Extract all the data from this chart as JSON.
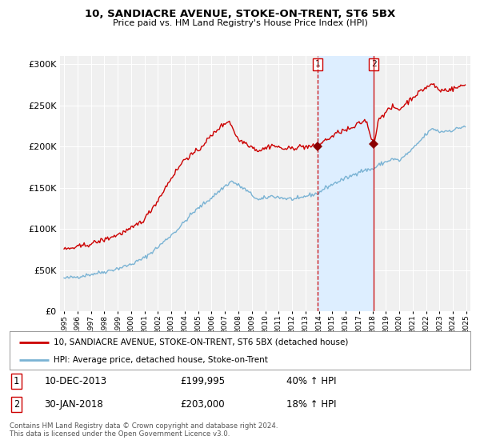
{
  "title": "10, SANDIACRE AVENUE, STOKE-ON-TRENT, ST6 5BX",
  "subtitle": "Price paid vs. HM Land Registry's House Price Index (HPI)",
  "legend_line1": "10, SANDIACRE AVENUE, STOKE-ON-TRENT, ST6 5BX (detached house)",
  "legend_line2": "HPI: Average price, detached house, Stoke-on-Trent",
  "annotation1_label": "1",
  "annotation1_date": "10-DEC-2013",
  "annotation1_price": "£199,995",
  "annotation1_hpi": "40% ↑ HPI",
  "annotation2_label": "2",
  "annotation2_date": "30-JAN-2018",
  "annotation2_price": "£203,000",
  "annotation2_hpi": "18% ↑ HPI",
  "footer": "Contains HM Land Registry data © Crown copyright and database right 2024.\nThis data is licensed under the Open Government Licence v3.0.",
  "hpi_color": "#7ab3d4",
  "price_color": "#cc0000",
  "marker_color": "#8b0000",
  "vline1_color": "#cc0000",
  "vline2_color": "#cc0000",
  "shade_color": "#ddeeff",
  "background_color": "#ffffff",
  "plot_bg_color": "#f0f0f0",
  "grid_color": "#ffffff",
  "ylim": [
    0,
    310000
  ],
  "yticks": [
    0,
    50000,
    100000,
    150000,
    200000,
    250000,
    300000
  ],
  "sale1_t": 2013.917,
  "sale1_v": 199995,
  "sale2_t": 2018.083,
  "sale2_v": 203000,
  "xlim_left": 1994.7,
  "xlim_right": 2025.3
}
